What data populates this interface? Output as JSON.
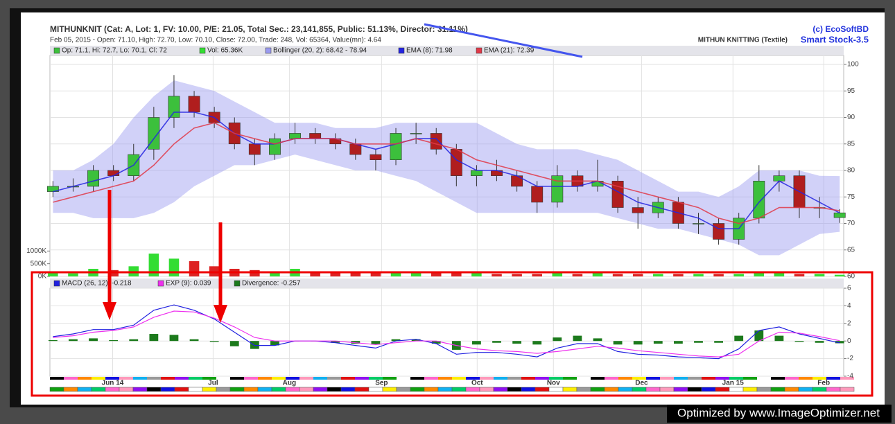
{
  "header": {
    "title": "MITHUNKNIT (Cat: A, Lot: 1, FV: 10.00, P/E: 21.05, Total Sec.: 23,141,855, Public: 51.13%, Director: 31.11%)",
    "subtitle": "Feb 05, 2015 - Open: 71.10, High: 72.70, Low: 70.10, Close: 72.00, Trade: 248, Vol: 65364, Value(mn): 4.64",
    "copyright": "(c) EcoSoftBD",
    "product": "Smart Stock-3.5",
    "company": "MITHUN KNITTING (Textile)"
  },
  "watermark": "Optimized by www.ImageOptimizer.net",
  "chart_data": [
    {
      "type": "candlestick",
      "name": "Op: 71.1, Hi: 72.7, Lo: 70.1, Cl: 72",
      "up_color": "#3cc03c",
      "down_color": "#b01e1e",
      "open": [
        76,
        77,
        77,
        80,
        79,
        84,
        90,
        94,
        91,
        89,
        85,
        83,
        86,
        87,
        86,
        85,
        83,
        82,
        87,
        87,
        84,
        79,
        80,
        79,
        77,
        74,
        79,
        77,
        78,
        73,
        72,
        74,
        70,
        70,
        67,
        71,
        78,
        79,
        73,
        71.1
      ],
      "high": [
        78,
        78.5,
        81,
        81,
        85,
        92,
        98,
        95,
        92,
        90,
        86,
        87,
        89,
        88,
        87,
        86,
        84,
        88,
        89,
        88,
        85,
        81,
        82,
        80,
        78,
        81,
        80,
        82,
        79,
        75,
        75,
        75,
        72,
        71,
        72,
        81,
        80,
        80,
        75,
        72.7
      ],
      "low": [
        75,
        76,
        76,
        78,
        78,
        82,
        88,
        90,
        88,
        84,
        81,
        82,
        85,
        85,
        84,
        82,
        80,
        81,
        85,
        83,
        77,
        77,
        78,
        76,
        72,
        73,
        76,
        76,
        72,
        69,
        71,
        69,
        68,
        66,
        66,
        70,
        76,
        71,
        71,
        70.1
      ],
      "close": [
        77,
        77,
        80,
        79,
        83,
        90,
        94,
        91,
        89,
        85,
        83,
        86,
        87,
        86,
        85,
        83,
        82,
        87,
        87,
        84,
        79,
        80,
        79,
        77,
        74,
        79,
        77,
        78,
        73,
        72,
        74,
        70,
        70,
        67,
        71,
        78,
        79,
        73,
        73,
        72
      ],
      "bands": {
        "name": "Bollinger (20, 2): 68.42 - 78.94",
        "color": "#9a9af0",
        "upper": [
          80,
          80,
          82,
          85,
          90,
          94,
          97,
          96,
          95,
          93,
          91,
          89,
          89,
          89,
          88,
          88,
          88,
          89,
          89,
          89,
          89,
          89,
          87,
          85,
          84,
          84,
          84,
          83,
          82,
          80,
          78,
          76,
          76,
          75,
          77,
          80,
          80,
          80,
          79,
          78.94
        ],
        "lower": [
          72,
          72,
          71,
          71,
          71,
          72,
          74,
          77,
          79,
          81,
          81,
          82,
          83,
          82,
          81,
          80,
          80,
          79,
          78,
          76,
          74,
          72,
          72,
          72,
          72,
          72,
          72,
          72,
          71,
          70,
          69,
          69,
          68,
          67,
          66,
          64,
          64,
          66,
          68,
          68.42
        ]
      },
      "series": [
        {
          "name": "EMA (8): 71.98",
          "color": "#2424e0",
          "values": [
            76,
            77,
            78,
            79,
            81,
            86,
            91,
            91,
            90,
            87,
            85,
            85,
            86,
            86,
            86,
            85,
            84,
            85,
            86,
            86,
            82,
            80,
            80,
            79,
            77,
            77,
            77,
            78,
            76,
            74,
            73,
            72,
            71,
            69,
            69,
            74,
            78,
            76,
            74,
            71.98
          ]
        },
        {
          "name": "EMA (21): 72.39",
          "color": "#e03848",
          "values": [
            74,
            75,
            76,
            77,
            78,
            81,
            85,
            88,
            89,
            87,
            86,
            85,
            86,
            86,
            86,
            85,
            85,
            85,
            86,
            85,
            84,
            82,
            81,
            80,
            79,
            78,
            78,
            78,
            77,
            76,
            75,
            74,
            73,
            71,
            70,
            71,
            73,
            73,
            73,
            72.39
          ]
        }
      ],
      "xlim": [
        -0.15,
        39.2
      ],
      "ylim": [
        60,
        101.7
      ],
      "yticks": [
        60,
        65,
        70,
        75,
        80,
        85,
        90,
        95,
        100
      ],
      "grid": true
    },
    {
      "type": "bar",
      "name": "Vol: 65.36K",
      "values": [
        150000,
        120000,
        300000,
        250000,
        400000,
        900000,
        700000,
        600000,
        400000,
        300000,
        250000,
        200000,
        300000,
        200000,
        200000,
        150000,
        150000,
        200000,
        150000,
        150000,
        200000,
        150000,
        100000,
        100000,
        100000,
        150000,
        100000,
        150000,
        100000,
        100000,
        100000,
        100000,
        100000,
        100000,
        100000,
        200000,
        150000,
        100000,
        100000,
        65364
      ],
      "color_up": "#33dd33",
      "color_down": "#dd2222",
      "xlim": [
        -0.15,
        39.2
      ],
      "ylim": [
        0,
        1500000
      ],
      "yticks": [
        {
          "value": 0,
          "label": "0K"
        },
        {
          "value": 500000,
          "label": "500K"
        },
        {
          "value": 1000000,
          "label": "1000K"
        }
      ]
    },
    {
      "type": "line",
      "series": [
        {
          "name": "MACD (26, 12): -0.218",
          "color": "#2020e0",
          "values": [
            0.5,
            0.8,
            1.3,
            1.3,
            1.8,
            3.5,
            4.1,
            3.5,
            2.5,
            1,
            -0.5,
            -0.5,
            0,
            0,
            -0.2,
            -0.5,
            -0.8,
            0,
            0.2,
            -0.3,
            -1.5,
            -1.3,
            -1.3,
            -1.5,
            -1.8,
            -0.8,
            -0.3,
            -0.3,
            -1.2,
            -1.5,
            -1.6,
            -1.8,
            -1.9,
            -2,
            -0.9,
            1.2,
            1.6,
            0.8,
            0.3,
            -0.218
          ]
        },
        {
          "name": "EXP (9): 0.039",
          "color": "#ee30ee",
          "values": [
            0.4,
            0.6,
            1.0,
            1.2,
            1.6,
            2.7,
            3.4,
            3.3,
            2.6,
            1.6,
            0.4,
            0,
            0,
            0,
            0,
            -0.2,
            -0.4,
            -0.2,
            0,
            0,
            -0.5,
            -0.9,
            -1.1,
            -1.2,
            -1.4,
            -1.2,
            -0.9,
            -0.6,
            -0.8,
            -1.1,
            -1.3,
            -1.5,
            -1.7,
            -1.8,
            -1.5,
            0,
            1.0,
            0.9,
            0.5,
            0.039
          ]
        },
        {
          "name": "Divergence: -0.257",
          "color": "#1c7a1c",
          "kind": "bar",
          "values": [
            0.1,
            0.2,
            0.3,
            0.1,
            0.2,
            0.8,
            0.7,
            0.2,
            -0.1,
            -0.6,
            -0.9,
            -0.5,
            0,
            0,
            -0.2,
            -0.3,
            -0.4,
            0.2,
            0.2,
            -0.3,
            -1.0,
            -0.4,
            -0.2,
            -0.3,
            -0.4,
            0.4,
            0.6,
            0.3,
            -0.4,
            -0.4,
            -0.3,
            -0.3,
            -0.2,
            -0.2,
            0.6,
            1.2,
            0.6,
            -0.1,
            -0.2,
            -0.257
          ]
        }
      ],
      "xlim": [
        -0.15,
        39.2
      ],
      "ylim": [
        -4,
        6
      ],
      "yticks": [
        -4,
        -2,
        0,
        2,
        4,
        6
      ],
      "xticks": [
        {
          "value": 2.96,
          "label": "Jun 14"
        },
        {
          "value": 7.94,
          "label": "Jul"
        },
        {
          "value": 11.72,
          "label": "Aug"
        },
        {
          "value": 16.29,
          "label": "Sep"
        },
        {
          "value": 21.03,
          "label": "Oct"
        },
        {
          "value": 24.81,
          "label": "Nov"
        },
        {
          "value": 29.18,
          "label": "Dec"
        },
        {
          "value": 33.71,
          "label": "Jan 15"
        },
        {
          "value": 38.21,
          "label": "Feb"
        }
      ],
      "grid": true
    }
  ]
}
